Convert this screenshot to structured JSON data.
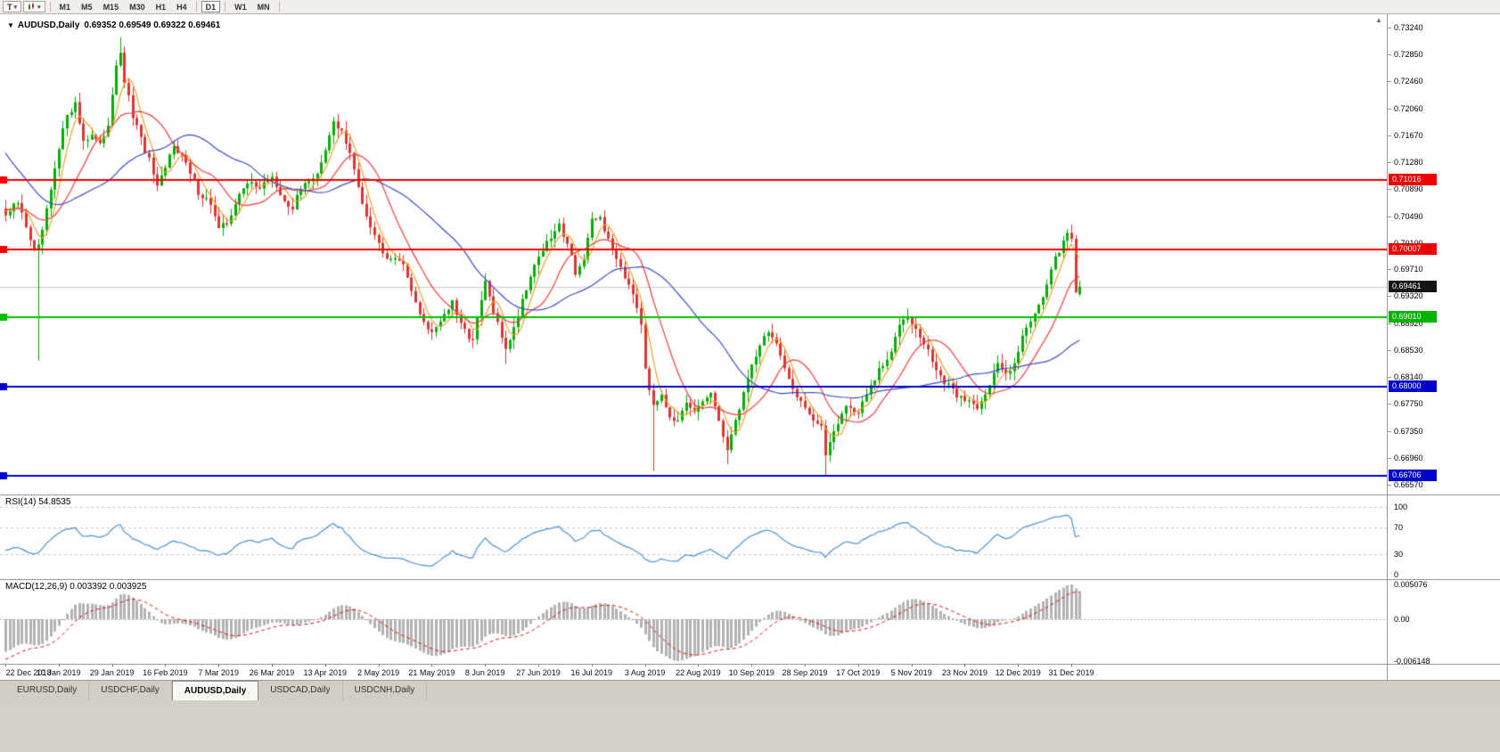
{
  "icons": {
    "scroll_up": "▲",
    "chevron_down": "▾"
  },
  "toolbar": {
    "templates_button": "T",
    "timeframes": [
      "M1",
      "M5",
      "M15",
      "M30",
      "H1",
      "H4",
      "D1",
      "W1",
      "MN"
    ],
    "active_timeframe": "D1"
  },
  "tabs": {
    "items": [
      "EURUSD,Daily",
      "USDCHF,Daily",
      "AUDUSD,Daily",
      "USDCAD,Daily",
      "USDCNH,Daily"
    ],
    "active": "AUDUSD,Daily"
  },
  "chart_data": {
    "type": "candlestick",
    "title": "AUDUSD,Daily",
    "ohlc_text": "0.69352 0.69549 0.69322 0.69461",
    "collapse_icon": "▼",
    "last_candle": {
      "open": 0.69352,
      "high": 0.69549,
      "low": 0.69322,
      "close": 0.69461
    },
    "candle_count": 263,
    "y_range": [
      0.6657,
      0.7324
    ],
    "y_ticks": [
      "0.73240",
      "0.72850",
      "0.72460",
      "0.72060",
      "0.71670",
      "0.71280",
      "0.70890",
      "0.70490",
      "0.70100",
      "0.69710",
      "0.69320",
      "0.68920",
      "0.68530",
      "0.68140",
      "0.67750",
      "0.67350",
      "0.66960",
      "0.66570"
    ],
    "x_labels": [
      "22 Dec 2018",
      "10 Jan 2019",
      "29 Jan 2019",
      "16 Feb 2019",
      "7 Mar 2019",
      "26 Mar 2019",
      "13 Apr 2019",
      "2 May 2019",
      "21 May 2019",
      "8 Jun 2019",
      "27 Jun 2019",
      "16 Jul 2019",
      "3 Aug 2019",
      "22 Aug 2019",
      "10 Sep 2019",
      "28 Sep 2019",
      "17 Oct 2019",
      "5 Nov 2019",
      "23 Nov 2019",
      "12 Dec 2019",
      "31 Dec 2019"
    ],
    "candles_per_label": 13,
    "close_anchors": [
      [
        0,
        0.705
      ],
      [
        3,
        0.7068
      ],
      [
        5,
        0.7035
      ],
      [
        7,
        0.6998
      ],
      [
        8,
        0.7002
      ],
      [
        10,
        0.7055
      ],
      [
        13,
        0.7145
      ],
      [
        15,
        0.72
      ],
      [
        17,
        0.7212
      ],
      [
        19,
        0.716
      ],
      [
        21,
        0.7168
      ],
      [
        23,
        0.715
      ],
      [
        25,
        0.7185
      ],
      [
        27,
        0.7272
      ],
      [
        28,
        0.7282
      ],
      [
        29,
        0.7245
      ],
      [
        31,
        0.7195
      ],
      [
        33,
        0.716
      ],
      [
        35,
        0.713
      ],
      [
        37,
        0.7088
      ],
      [
        39,
        0.7118
      ],
      [
        41,
        0.7155
      ],
      [
        43,
        0.7138
      ],
      [
        45,
        0.711
      ],
      [
        47,
        0.7085
      ],
      [
        50,
        0.7068
      ],
      [
        52,
        0.7028
      ],
      [
        54,
        0.704
      ],
      [
        56,
        0.7068
      ],
      [
        58,
        0.7088
      ],
      [
        60,
        0.7102
      ],
      [
        62,
        0.7088
      ],
      [
        65,
        0.7108
      ],
      [
        67,
        0.7076
      ],
      [
        70,
        0.7062
      ],
      [
        73,
        0.71
      ],
      [
        76,
        0.7108
      ],
      [
        78,
        0.7142
      ],
      [
        80,
        0.7188
      ],
      [
        82,
        0.7172
      ],
      [
        84,
        0.7138
      ],
      [
        86,
        0.7092
      ],
      [
        88,
        0.7052
      ],
      [
        91,
        0.7008
      ],
      [
        93,
        0.6992
      ],
      [
        96,
        0.6988
      ],
      [
        99,
        0.6945
      ],
      [
        101,
        0.6902
      ],
      [
        104,
        0.688
      ],
      [
        106,
        0.6898
      ],
      [
        109,
        0.6922
      ],
      [
        111,
        0.6888
      ],
      [
        114,
        0.6868
      ],
      [
        116,
        0.6925
      ],
      [
        117,
        0.6952
      ],
      [
        119,
        0.6908
      ],
      [
        121,
        0.6872
      ],
      [
        122,
        0.6858
      ],
      [
        124,
        0.6885
      ],
      [
        126,
        0.6928
      ],
      [
        128,
        0.6962
      ],
      [
        130,
        0.6992
      ],
      [
        132,
        0.7008
      ],
      [
        135,
        0.7035
      ],
      [
        137,
        0.7012
      ],
      [
        139,
        0.6968
      ],
      [
        141,
        0.6985
      ],
      [
        143,
        0.704
      ],
      [
        145,
        0.7048
      ],
      [
        147,
        0.7012
      ],
      [
        149,
        0.699
      ],
      [
        151,
        0.6962
      ],
      [
        153,
        0.694
      ],
      [
        155,
        0.6895
      ],
      [
        156,
        0.683
      ],
      [
        158,
        0.6768
      ],
      [
        160,
        0.6792
      ],
      [
        162,
        0.6758
      ],
      [
        164,
        0.6748
      ],
      [
        166,
        0.6772
      ],
      [
        168,
        0.6762
      ],
      [
        170,
        0.6778
      ],
      [
        172,
        0.6792
      ],
      [
        174,
        0.6745
      ],
      [
        176,
        0.6712
      ],
      [
        178,
        0.6748
      ],
      [
        180,
        0.6792
      ],
      [
        182,
        0.6832
      ],
      [
        184,
        0.6862
      ],
      [
        186,
        0.6882
      ],
      [
        188,
        0.6862
      ],
      [
        190,
        0.6822
      ],
      [
        192,
        0.6798
      ],
      [
        195,
        0.6772
      ],
      [
        197,
        0.6752
      ],
      [
        199,
        0.6738
      ],
      [
        200,
        0.6702
      ],
      [
        202,
        0.6738
      ],
      [
        205,
        0.6772
      ],
      [
        208,
        0.6762
      ],
      [
        210,
        0.6788
      ],
      [
        213,
        0.6822
      ],
      [
        216,
        0.6848
      ],
      [
        218,
        0.6895
      ],
      [
        220,
        0.6908
      ],
      [
        222,
        0.6882
      ],
      [
        224,
        0.6862
      ],
      [
        226,
        0.6838
      ],
      [
        229,
        0.6805
      ],
      [
        232,
        0.6788
      ],
      [
        234,
        0.6782
      ],
      [
        237,
        0.6772
      ],
      [
        240,
        0.6802
      ],
      [
        242,
        0.6832
      ],
      [
        244,
        0.6818
      ],
      [
        246,
        0.6838
      ],
      [
        248,
        0.6872
      ],
      [
        250,
        0.6898
      ],
      [
        252,
        0.6922
      ],
      [
        254,
        0.6948
      ],
      [
        256,
        0.6985
      ],
      [
        258,
        0.7012
      ],
      [
        259,
        0.7028
      ],
      [
        260,
        0.7018
      ],
      [
        261,
        0.694
      ],
      [
        262,
        0.69461
      ]
    ],
    "wick_lows": [
      [
        8,
        0.6838
      ],
      [
        122,
        0.6833
      ],
      [
        158,
        0.6677
      ],
      [
        176,
        0.6687
      ],
      [
        200,
        0.667
      ]
    ],
    "wick_highs": [
      [
        28,
        0.731
      ]
    ],
    "horizontal_lines": [
      {
        "price": 0.71016,
        "color": "#f00000"
      },
      {
        "price": 0.70007,
        "color": "#f00000"
      },
      {
        "price": 0.6901,
        "color": "#00c000"
      },
      {
        "price": 0.68,
        "color": "#0000cd"
      },
      {
        "price": 0.66706,
        "color": "#0000cd"
      }
    ],
    "current_price_line": {
      "price": 0.69461,
      "color": "#c9c9c9"
    },
    "price_tags": [
      {
        "text": "0.71016",
        "price": 0.71016,
        "bg": "#f00000"
      },
      {
        "text": "0.70007",
        "price": 0.70007,
        "bg": "#f00000"
      },
      {
        "text": "0.69461",
        "price": 0.69461,
        "bg": "#141414"
      },
      {
        "text": "0.69010",
        "price": 0.6901,
        "bg": "#00b300"
      },
      {
        "text": "0.68000",
        "price": 0.68,
        "bg": "#0000cd"
      },
      {
        "text": "0.66706",
        "price": 0.66706,
        "bg": "#0000cd"
      }
    ],
    "moving_averages": [
      {
        "period": 5,
        "color": "#f0a028"
      },
      {
        "period": 13,
        "color": "#f03c3c"
      },
      {
        "period": 34,
        "color": "#3b4cc8"
      }
    ],
    "bull_color": "#00ad00",
    "bear_color": "#df3232",
    "rsi": {
      "label": "RSI(14) 54.8535",
      "period": 14,
      "current": 54.8535,
      "levels": [
        100,
        70,
        30,
        0
      ],
      "level_labels": [
        "100",
        "70",
        "30",
        "0"
      ],
      "line_color": "#4a8fd0"
    },
    "macd": {
      "label": "MACD(12,26,9) 0.003392 0.003925",
      "fast": 12,
      "slow": 26,
      "signal": 9,
      "current_macd": 0.003392,
      "current_signal": 0.003925,
      "axis_max": 0.005076,
      "axis_min": -0.006148,
      "axis_labels": [
        "0.005076",
        "0.00",
        "-0.006148"
      ],
      "histogram_color": "#b2b2b2",
      "signal_color": "#e01010"
    }
  }
}
